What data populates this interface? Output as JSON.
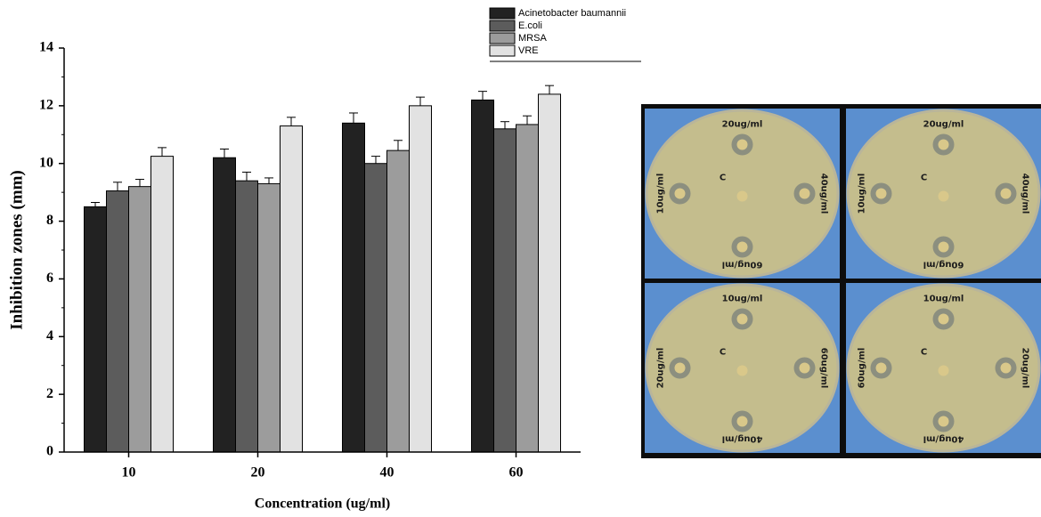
{
  "chart_data": {
    "type": "bar",
    "ylabel": "Inhibition zones (mm)",
    "xlabel": "Concentration (ug/ml)",
    "categories": [
      "10",
      "20",
      "40",
      "60"
    ],
    "series": [
      {
        "name": "Acinetobacter baumannii",
        "color": "#222222",
        "values": [
          8.5,
          10.2,
          11.4,
          12.2
        ],
        "errors": [
          0.15,
          0.3,
          0.35,
          0.3
        ]
      },
      {
        "name": "E.coli",
        "color": "#5c5c5c",
        "values": [
          9.05,
          9.4,
          10.0,
          11.2
        ],
        "errors": [
          0.3,
          0.3,
          0.25,
          0.25
        ]
      },
      {
        "name": "MRSA",
        "color": "#9c9c9c",
        "values": [
          9.2,
          9.3,
          10.45,
          11.35
        ],
        "errors": [
          0.25,
          0.2,
          0.35,
          0.3
        ]
      },
      {
        "name": "VRE",
        "color": "#e2e2e2",
        "values": [
          10.25,
          11.3,
          12.0,
          12.4
        ],
        "errors": [
          0.3,
          0.3,
          0.3,
          0.3
        ]
      }
    ],
    "ylim": [
      0,
      14
    ],
    "yticks": [
      0,
      2,
      4,
      6,
      8,
      10,
      12,
      14
    ]
  },
  "photos": {
    "plates": [
      {
        "top": "20ug/ml",
        "left": "10ug/ml",
        "right": "40ug/ml",
        "bottom": "60ug/ml",
        "center": "C"
      },
      {
        "top": "20ug/ml",
        "left": "10ug/ml",
        "right": "40ug/ml",
        "bottom": "60ug/ml",
        "center": "C"
      },
      {
        "top": "10ug/ml",
        "left": "20ug/ml",
        "right": "60ug/ml",
        "bottom": "40ug/ml",
        "center": "C"
      },
      {
        "top": "10ug/ml",
        "left": "60ug/ml",
        "right": "20ug/ml",
        "bottom": "40ug/ml",
        "center": "C"
      }
    ]
  }
}
